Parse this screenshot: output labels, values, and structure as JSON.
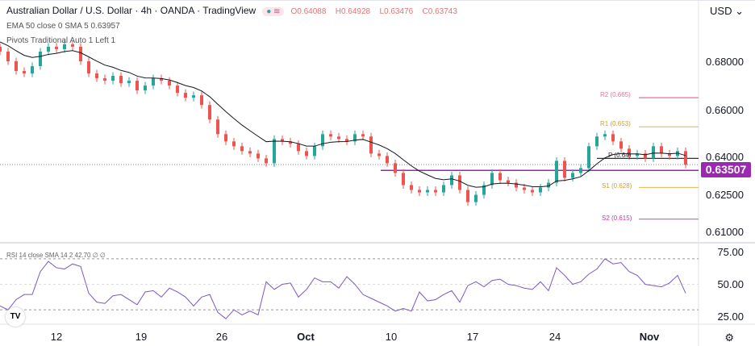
{
  "header": {
    "title": "Australian Dollar / U.S. Dollar · 4h · OANDA · TradingView",
    "ohlc": {
      "open": "O0.64088",
      "high": "H0.64928",
      "low": "L0.63476",
      "close": "C0.63743"
    }
  },
  "indicators": {
    "ema": "EMA 50 close 0 SMA 5  0.63957",
    "pivots": "Pivots Traditional Auto 1 Left 1",
    "rsi": "RSI 14 close SMA 14 2  42.70 ∅ ∅"
  },
  "currency": "USD",
  "price_box": "0.63507",
  "pivot_labels": {
    "R2": "R2 (0.665)",
    "R1": "R1 (0.653)",
    "P": "P (0.64)",
    "S1": "S1 (0.628)",
    "S2": "S2 (0.615)"
  },
  "colors": {
    "up": "#26a69a",
    "down": "#ef5350",
    "ema": "#131722",
    "rsi": "#7e57c2",
    "hline": "#9c27b0",
    "r": "#e5739b",
    "r1": "#e8c26a",
    "s1": "#e8c26a",
    "s2": "#d16fbf"
  },
  "chart_data": {
    "type": "candlestick",
    "price_axis": {
      "ticks": [
        "0.68000",
        "0.66000",
        "0.64000",
        "0.62500",
        "0.61000"
      ],
      "range": [
        0.605,
        0.69
      ]
    },
    "time_axis": [
      "12",
      "19",
      "26",
      "Oct",
      "10",
      "17",
      "24",
      "Nov"
    ],
    "pivots": {
      "R2": 0.665,
      "R1": 0.653,
      "P": 0.64,
      "S1": 0.628,
      "S2": 0.615
    },
    "horizontal_line": 0.63507,
    "last_price": 0.63743,
    "closes": [
      0.684,
      0.68,
      0.676,
      0.675,
      0.678,
      0.684,
      0.686,
      0.685,
      0.687,
      0.686,
      0.68,
      0.675,
      0.673,
      0.672,
      0.674,
      0.671,
      0.672,
      0.668,
      0.67,
      0.673,
      0.672,
      0.67,
      0.667,
      0.665,
      0.666,
      0.662,
      0.656,
      0.65,
      0.647,
      0.645,
      0.643,
      0.642,
      0.64,
      0.638,
      0.648,
      0.647,
      0.646,
      0.643,
      0.641,
      0.645,
      0.65,
      0.649,
      0.648,
      0.647,
      0.65,
      0.649,
      0.642,
      0.641,
      0.638,
      0.634,
      0.629,
      0.627,
      0.626,
      0.627,
      0.626,
      0.629,
      0.633,
      0.627,
      0.622,
      0.625,
      0.629,
      0.634,
      0.631,
      0.63,
      0.628,
      0.627,
      0.626,
      0.628,
      0.63,
      0.639,
      0.632,
      0.634,
      0.636,
      0.645,
      0.649,
      0.65,
      0.647,
      0.644,
      0.641,
      0.642,
      0.64,
      0.645,
      0.642,
      0.641,
      0.643,
      0.6374
    ],
    "rsi": {
      "ticks": [
        "75.00",
        "50.00",
        "25.00"
      ],
      "bands": [
        70,
        30
      ],
      "values": [
        33,
        30,
        38,
        42,
        42,
        60,
        68,
        63,
        62,
        66,
        64,
        43,
        36,
        35,
        41,
        42,
        38,
        34,
        44,
        45,
        40,
        47,
        44,
        40,
        33,
        40,
        42,
        28,
        23,
        30,
        26,
        29,
        26,
        52,
        46,
        50,
        51,
        40,
        46,
        55,
        52,
        52,
        47,
        56,
        50,
        42,
        39,
        36,
        33,
        29,
        31,
        29,
        44,
        37,
        38,
        42,
        45,
        36,
        49,
        52,
        48,
        53,
        54,
        50,
        49,
        47,
        46,
        52,
        45,
        63,
        57,
        50,
        52,
        58,
        62,
        70,
        66,
        67,
        60,
        57,
        50,
        49,
        48,
        51,
        57,
        43
      ]
    }
  }
}
